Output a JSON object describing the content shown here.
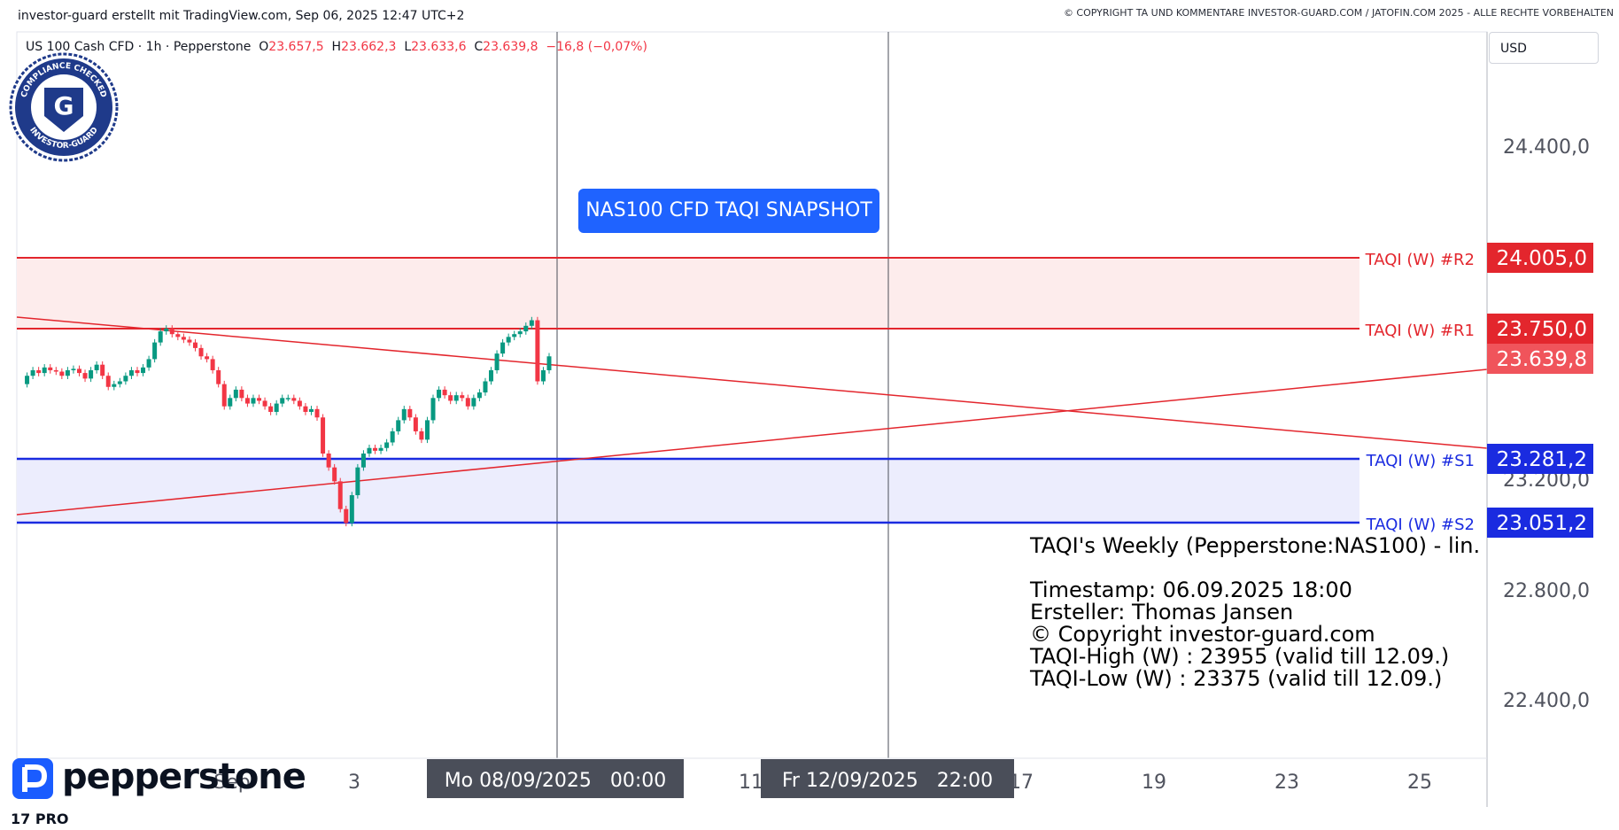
{
  "header": {
    "attribution": "investor-guard erstellt mit TradingView.com, Sep 06, 2025 12:47 UTC+2",
    "copyright": "© COPYRIGHT TA UND KOMMENTARE INVESTOR-GUARD.COM / JATOFIN.COM 2025 - ALLE RECHTE VORBEHALTEN"
  },
  "symbol_bar": {
    "symbol": "US 100 Cash CFD · 1h · Pepperstone",
    "o_label": "O",
    "o_value": "23.657,5",
    "h_label": "H",
    "h_value": "23.662,3",
    "l_label": "L",
    "l_value": "23.633,6",
    "c_label": "C",
    "c_value": "23.639,8",
    "change": "−16,8 (−0,07%)"
  },
  "currency_button": "USD",
  "badge": {
    "top_text": "COMPLIANCE CHECKED",
    "bottom_text": "INVESTOR-GUARD",
    "letter": "G"
  },
  "snapshot_label": "NAS100 CFD TAQI SNAPSHOT",
  "info_panel": {
    "line1": "TAQI's Weekly (Pepperstone:NAS100) - lin.",
    "line2": "Timestamp: 06.09.2025 18:00",
    "line3": "Ersteller: Thomas Jansen",
    "line4": "© Copyright investor-guard.com",
    "line5": "TAQI-High (W) : 23955 (valid till 12.09.)",
    "line6": "TAQI-Low (W) : 23375 (valid till 12.09.)"
  },
  "branding": {
    "broker_logo": "pepperstone",
    "platform_logo": "17 PRO"
  },
  "colors": {
    "resistance": "#e3262d",
    "support": "#1a2be0",
    "resistance_zone": "#fdecec",
    "support_zone": "#ecedfd",
    "up_candle": "#089981",
    "down_candle": "#f23645",
    "trendline": "#e3262d",
    "last_price_bg": "#f0545b",
    "snapshot_bg": "#1f63ff"
  },
  "chart_data": {
    "type": "candlestick",
    "y_axis": {
      "tick_values": [
        22400,
        22800,
        23200,
        24400
      ],
      "tick_labels": [
        "22.400,0",
        "22.800,0",
        "23.200,0",
        "24.400,0"
      ]
    },
    "x_axis": {
      "tick_labels": [
        "Sep",
        "3",
        "11",
        "17",
        "19",
        "23",
        "25"
      ],
      "crosshair_labels": [
        "Mo 08/09/2025   00:00",
        "Fr 12/09/2025   22:00"
      ]
    },
    "levels": [
      {
        "name": "TAQI (W) #R2",
        "value": 24005.0,
        "label": "24.005,0",
        "kind": "resistance"
      },
      {
        "name": "TAQI (W) #R1",
        "value": 23750.0,
        "label": "23.750,0",
        "kind": "resistance"
      },
      {
        "name": "TAQI (W) #S1",
        "value": 23281.2,
        "label": "23.281,2",
        "kind": "support"
      },
      {
        "name": "TAQI (W) #S2",
        "value": 23051.2,
        "label": "23.051,2",
        "kind": "support"
      }
    ],
    "last_price": {
      "value": 23639.8,
      "label": "23.639,8"
    },
    "closes": [
      23550,
      23580,
      23600,
      23590,
      23610,
      23600,
      23595,
      23580,
      23600,
      23605,
      23590,
      23570,
      23600,
      23620,
      23580,
      23540,
      23550,
      23560,
      23580,
      23600,
      23590,
      23610,
      23640,
      23700,
      23740,
      23750,
      23730,
      23720,
      23710,
      23700,
      23680,
      23650,
      23640,
      23600,
      23550,
      23470,
      23500,
      23530,
      23500,
      23480,
      23500,
      23490,
      23470,
      23450,
      23480,
      23500,
      23500,
      23490,
      23470,
      23450,
      23460,
      23430,
      23300,
      23250,
      23200,
      23100,
      23050,
      23150,
      23250,
      23300,
      23320,
      23310,
      23320,
      23340,
      23380,
      23420,
      23460,
      23430,
      23380,
      23350,
      23420,
      23500,
      23530,
      23510,
      23490,
      23510,
      23500,
      23470,
      23500,
      23520,
      23560,
      23600,
      23660,
      23700,
      23720,
      23730,
      23740,
      23760,
      23780,
      23560,
      23600,
      23650
    ]
  }
}
